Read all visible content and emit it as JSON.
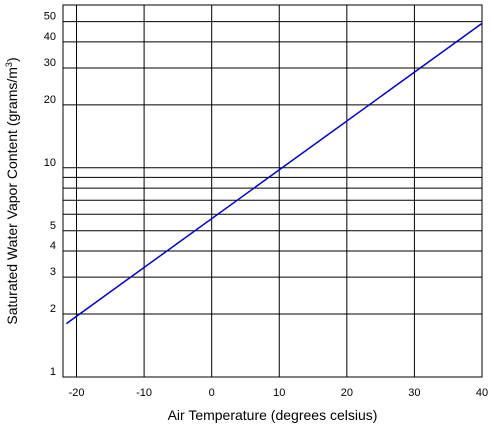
{
  "chart_data": {
    "type": "line",
    "title": "",
    "xlabel": "Air Temperature (degrees celsius)",
    "ylabel_main": "Saturated Water Vapor Content (grams/m",
    "ylabel_sup": "3",
    "ylabel_close": ")",
    "yscale": "log",
    "xlim": [
      -22,
      40
    ],
    "ylim": [
      1,
      60
    ],
    "grid": true,
    "x_ticks": [
      {
        "value": -20,
        "label": "-20"
      },
      {
        "value": -10,
        "label": "-10"
      },
      {
        "value": 0,
        "label": "0"
      },
      {
        "value": 10,
        "label": "10"
      },
      {
        "value": 20,
        "label": "20"
      },
      {
        "value": 30,
        "label": "30"
      },
      {
        "value": 40,
        "label": "40"
      }
    ],
    "y_ticks": [
      {
        "value": 1,
        "label": "1"
      },
      {
        "value": 2,
        "label": "2"
      },
      {
        "value": 3,
        "label": "3"
      },
      {
        "value": 4,
        "label": "4"
      },
      {
        "value": 5,
        "label": "5"
      },
      {
        "value": 10,
        "label": "10"
      },
      {
        "value": 20,
        "label": "20"
      },
      {
        "value": 30,
        "label": "30"
      },
      {
        "value": 40,
        "label": "40"
      },
      {
        "value": 50,
        "label": "50"
      }
    ],
    "y_gridlines": [
      1,
      2,
      3,
      4,
      5,
      6,
      7,
      8,
      9,
      10,
      20,
      30,
      40,
      50
    ],
    "series": [
      {
        "color": "#0000cc",
        "x": [
          -21.5,
          40
        ],
        "y": [
          1.8,
          49
        ]
      }
    ]
  }
}
